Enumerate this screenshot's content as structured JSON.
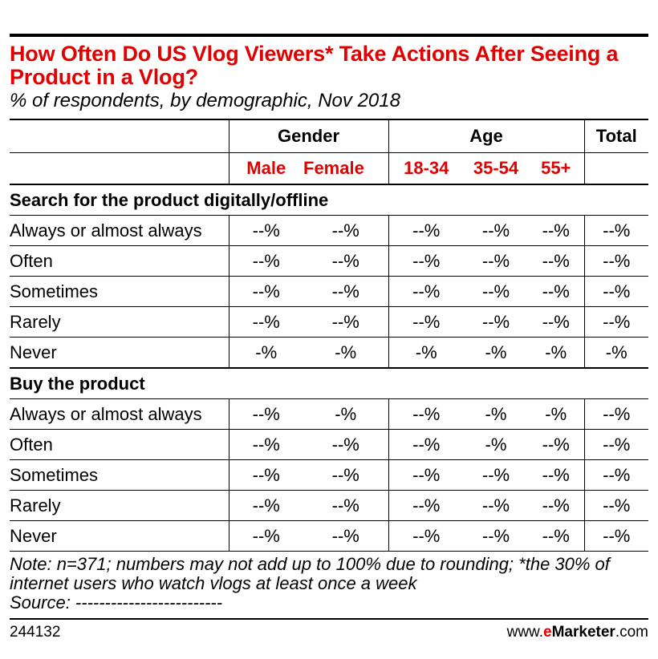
{
  "title": "How Often Do US Vlog Viewers* Take Actions After Seeing a Product in a Vlog?",
  "subtitle": "% of respondents, by demographic, Nov 2018",
  "headers": {
    "gender": "Gender",
    "age": "Age",
    "total": "Total",
    "male": "Male",
    "female": "Female",
    "age1": "18-34",
    "age2": "35-54",
    "age3": "55+"
  },
  "sections": [
    {
      "title": "Search for the product digitally/offline",
      "rows": [
        {
          "label": "Always or almost always",
          "values": [
            "--%",
            "--%",
            "--%",
            "--%",
            "--%",
            "--%"
          ]
        },
        {
          "label": "Often",
          "values": [
            "--%",
            "--%",
            "--%",
            "--%",
            "--%",
            "--%"
          ]
        },
        {
          "label": "Sometimes",
          "values": [
            "--%",
            "--%",
            "--%",
            "--%",
            "--%",
            "--%"
          ]
        },
        {
          "label": "Rarely",
          "values": [
            "--%",
            "--%",
            "--%",
            "--%",
            "--%",
            "--%"
          ]
        },
        {
          "label": "Never",
          "values": [
            "-%",
            "-%",
            "-%",
            "-%",
            "-%",
            "-%"
          ]
        }
      ]
    },
    {
      "title": "Buy the product",
      "rows": [
        {
          "label": "Always or almost always",
          "values": [
            "--%",
            "-%",
            "--%",
            "-%",
            "-%",
            "--%"
          ]
        },
        {
          "label": "Often",
          "values": [
            "--%",
            "--%",
            "--%",
            "-%",
            "--%",
            "--%"
          ]
        },
        {
          "label": "Sometimes",
          "values": [
            "--%",
            "--%",
            "--%",
            "--%",
            "--%",
            "--%"
          ]
        },
        {
          "label": "Rarely",
          "values": [
            "--%",
            "--%",
            "--%",
            "--%",
            "--%",
            "--%"
          ]
        },
        {
          "label": "Never",
          "values": [
            "--%",
            "--%",
            "--%",
            "--%",
            "--%",
            "--%"
          ]
        }
      ]
    }
  ],
  "note": "Note: n=371; numbers may not add up to 100% due to rounding; *the 30% of internet users who watch vlogs at least once a week",
  "source": "Source: -------------------------",
  "chart_id": "244132",
  "brand": {
    "prefix": "www.",
    "e": "e",
    "name": "Marketer",
    "suffix": ".com"
  },
  "colors": {
    "accent": "#e00000",
    "text": "#000000"
  }
}
